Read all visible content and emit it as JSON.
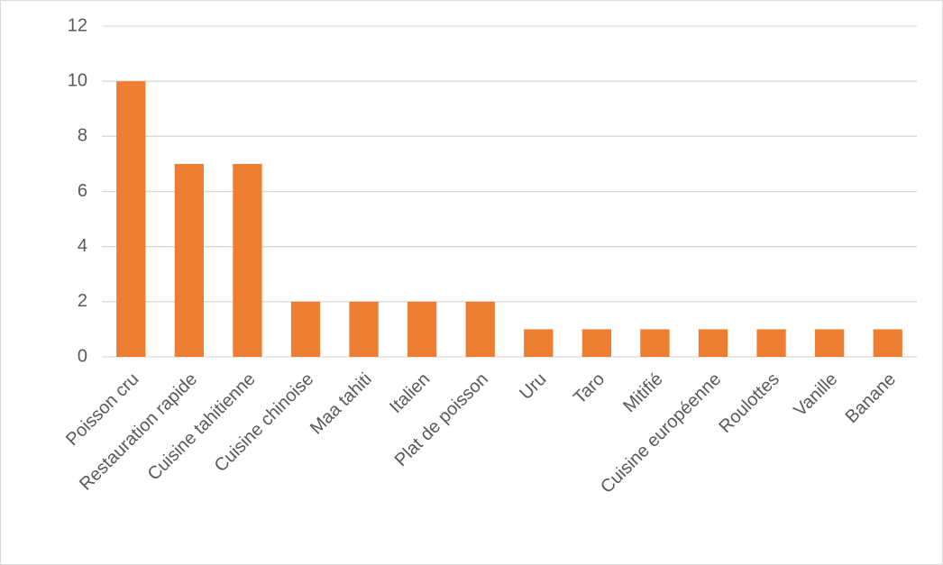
{
  "chart_data": {
    "type": "bar",
    "categories": [
      "Poisson cru",
      "Restauration rapide",
      "Cuisine tahitienne",
      "Cuisine chinoise",
      "Maa tahiti",
      "Italien",
      "Plat de poisson",
      "Uru",
      "Taro",
      "Mitifié",
      "Cuisine européenne",
      "Roulottes",
      "Vanille",
      "Banane"
    ],
    "values": [
      10,
      7,
      7,
      2,
      2,
      2,
      2,
      1,
      1,
      1,
      1,
      1,
      1,
      1
    ],
    "color": "#ed7d31",
    "ylim": [
      0,
      12
    ],
    "yticks": [
      0,
      2,
      4,
      6,
      8,
      10,
      12
    ],
    "grid": true
  }
}
